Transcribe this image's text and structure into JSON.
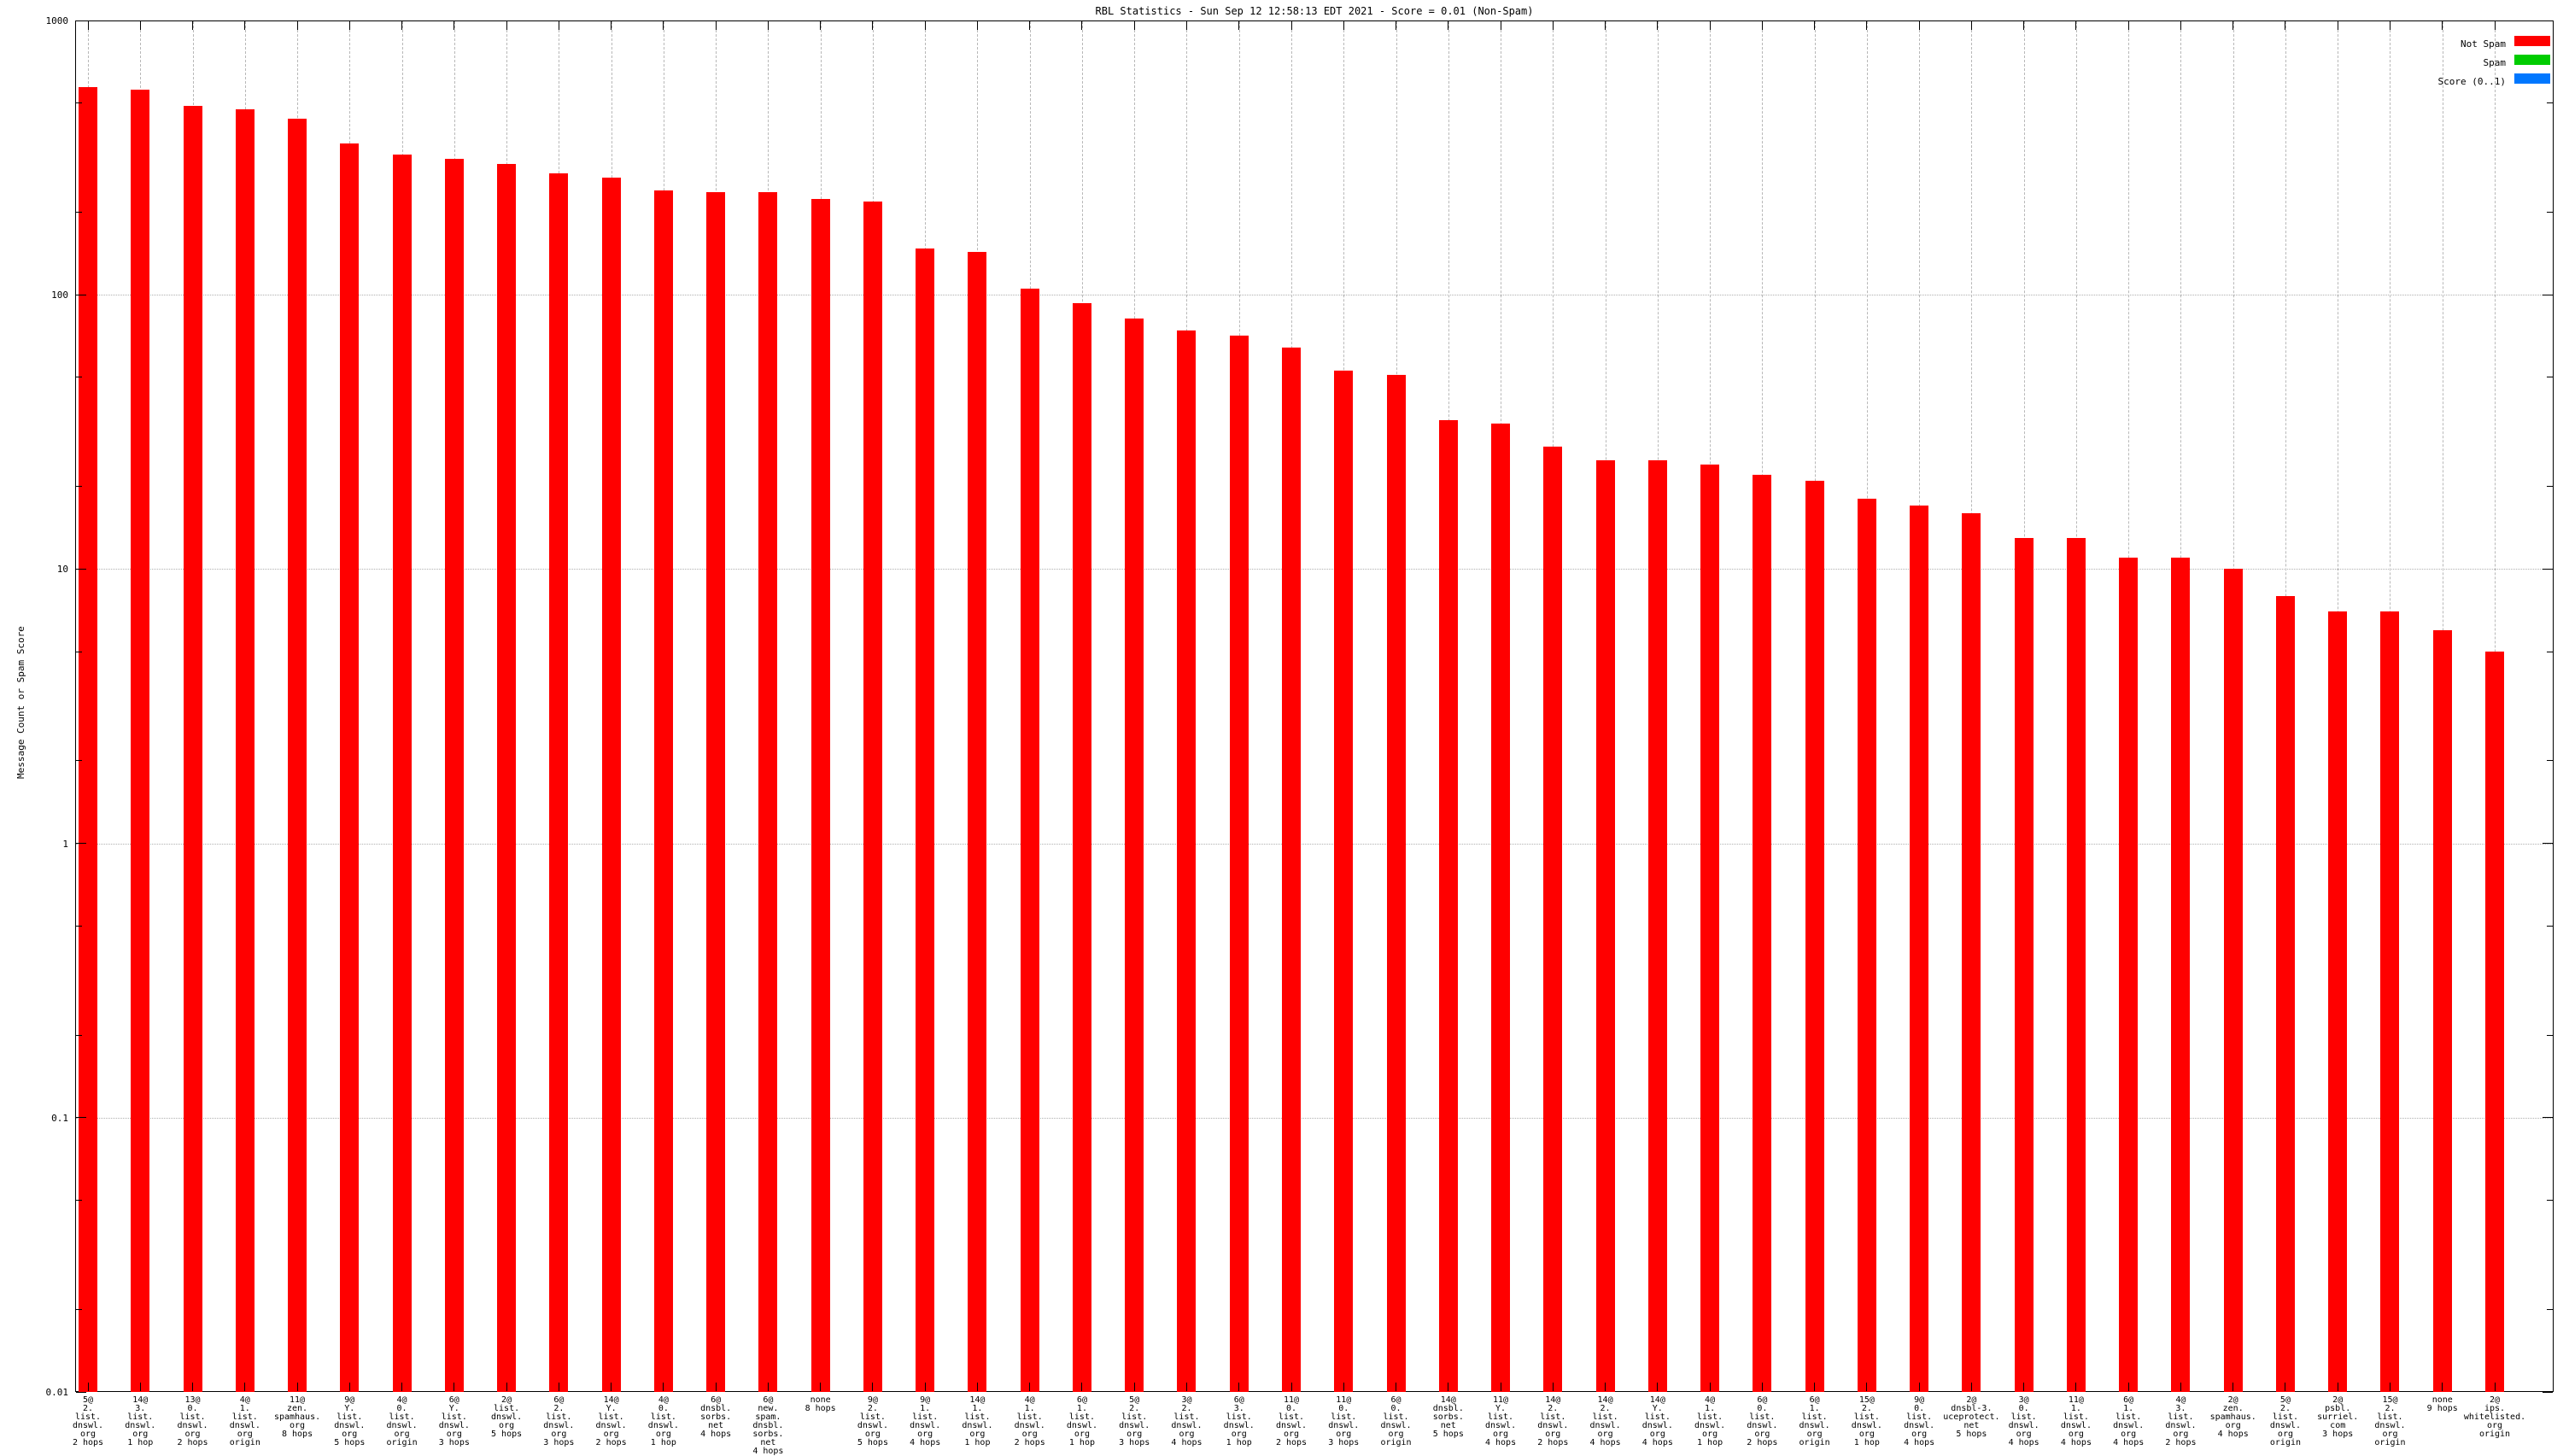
{
  "title": "RBL Statistics - Sun Sep 12 12:58:13 EDT 2021 - Score = 0.01 (Non-Spam)",
  "y_axis": {
    "label": "Message Count or Spam Score",
    "scale": "log",
    "tick_labels": [
      "1000",
      "100",
      "10",
      "1",
      "0.1",
      "0.01"
    ]
  },
  "legend": [
    {
      "label": "Not Spam",
      "color": "#ff0000"
    },
    {
      "label": "Spam",
      "color": "#00cc00"
    },
    {
      "label": "Score (0..1)",
      "color": "#0077ff"
    }
  ],
  "chart_data": {
    "type": "bar",
    "title": "RBL Statistics - Sun Sep 12 12:58:13 EDT 2021 - Score = 0.01 (Non-Spam)",
    "xlabel": "",
    "ylabel": "Message Count or Spam Score",
    "y_scale": "log",
    "ylim": [
      0.01,
      1000
    ],
    "grid": true,
    "legend_position": "top-right",
    "bar_color": "#ff0000",
    "series": [
      {
        "name": "Not Spam",
        "color": "#ff0000"
      },
      {
        "name": "Spam",
        "color": "#00cc00"
      },
      {
        "name": "Score (0..1)",
        "color": "#0077ff"
      }
    ],
    "categories": [
      [
        "5@",
        "2.",
        "list.",
        "dnswl.",
        "org",
        "2 hops"
      ],
      [
        "14@",
        "3.",
        "list.",
        "dnswl.",
        "org",
        "1 hop"
      ],
      [
        "13@",
        "0.",
        "list.",
        "dnswl.",
        "org",
        "2 hops"
      ],
      [
        "4@",
        "1.",
        "list.",
        "dnswl.",
        "org",
        "origin"
      ],
      [
        "11@",
        "zen.",
        "spamhaus.",
        "org",
        "8 hops"
      ],
      [
        "9@",
        "Y.",
        "list.",
        "dnswl.",
        "org",
        "5 hops"
      ],
      [
        "4@",
        "0.",
        "list.",
        "dnswl.",
        "org",
        "origin"
      ],
      [
        "6@",
        "Y.",
        "list.",
        "dnswl.",
        "org",
        "3 hops"
      ],
      [
        "2@",
        "list.",
        "dnswl.",
        "org",
        "5 hops"
      ],
      [
        "6@",
        "2.",
        "list.",
        "dnswl.",
        "org",
        "3 hops"
      ],
      [
        "14@",
        "Y.",
        "list.",
        "dnswl.",
        "org",
        "2 hops"
      ],
      [
        "4@",
        "0.",
        "list.",
        "dnswl.",
        "org",
        "1 hop"
      ],
      [
        "6@",
        "dnsbl.",
        "sorbs.",
        "net",
        "4 hops"
      ],
      [
        "6@",
        "new.",
        "spam.",
        "dnsbl.",
        "sorbs.",
        "net",
        "4 hops"
      ],
      [
        "none",
        "8 hops"
      ],
      [
        "9@",
        "2.",
        "list.",
        "dnswl.",
        "org",
        "5 hops"
      ],
      [
        "9@",
        "1.",
        "list.",
        "dnswl.",
        "org",
        "4 hops"
      ],
      [
        "14@",
        "1.",
        "list.",
        "dnswl.",
        "org",
        "1 hop"
      ],
      [
        "4@",
        "1.",
        "list.",
        "dnswl.",
        "org",
        "2 hops"
      ],
      [
        "6@",
        "1.",
        "list.",
        "dnswl.",
        "org",
        "1 hop"
      ],
      [
        "5@",
        "2.",
        "list.",
        "dnswl.",
        "org",
        "3 hops"
      ],
      [
        "3@",
        "2.",
        "list.",
        "dnswl.",
        "org",
        "4 hops"
      ],
      [
        "6@",
        "3.",
        "list.",
        "dnswl.",
        "org",
        "1 hop"
      ],
      [
        "11@",
        "0.",
        "list.",
        "dnswl.",
        "org",
        "2 hops"
      ],
      [
        "11@",
        "0.",
        "list.",
        "dnswl.",
        "org",
        "3 hops"
      ],
      [
        "6@",
        "0.",
        "list.",
        "dnswl.",
        "org",
        "origin"
      ],
      [
        "14@",
        "dnsbl.",
        "sorbs.",
        "net",
        "5 hops"
      ],
      [
        "11@",
        "Y.",
        "list.",
        "dnswl.",
        "org",
        "4 hops"
      ],
      [
        "14@",
        "2.",
        "list.",
        "dnswl.",
        "org",
        "2 hops"
      ],
      [
        "14@",
        "2.",
        "list.",
        "dnswl.",
        "org",
        "4 hops"
      ],
      [
        "14@",
        "Y.",
        "list.",
        "dnswl.",
        "org",
        "4 hops"
      ],
      [
        "4@",
        "1.",
        "list.",
        "dnswl.",
        "org",
        "1 hop"
      ],
      [
        "6@",
        "0.",
        "list.",
        "dnswl.",
        "org",
        "2 hops"
      ],
      [
        "6@",
        "1.",
        "list.",
        "dnswl.",
        "org",
        "origin"
      ],
      [
        "15@",
        "2.",
        "list.",
        "dnswl.",
        "org",
        "1 hop"
      ],
      [
        "9@",
        "0.",
        "list.",
        "dnswl.",
        "org",
        "4 hops"
      ],
      [
        "2@",
        "dnsbl-3.",
        "uceprotect.",
        "net",
        "5 hops"
      ],
      [
        "3@",
        "0.",
        "list.",
        "dnswl.",
        "org",
        "4 hops"
      ],
      [
        "11@",
        "1.",
        "list.",
        "dnswl.",
        "org",
        "4 hops"
      ],
      [
        "6@",
        "1.",
        "list.",
        "dnswl.",
        "org",
        "4 hops"
      ],
      [
        "4@",
        "3.",
        "list.",
        "dnswl.",
        "org",
        "2 hops"
      ],
      [
        "2@",
        "zen.",
        "spamhaus.",
        "org",
        "4 hops"
      ],
      [
        "5@",
        "2.",
        "list.",
        "dnswl.",
        "org",
        "origin"
      ],
      [
        "2@",
        "psbl.",
        "surriel.",
        "com",
        "3 hops"
      ],
      [
        "15@",
        "2.",
        "list.",
        "dnswl.",
        "org",
        "origin"
      ],
      [
        "none",
        "9 hops"
      ],
      [
        "2@",
        "ips.",
        "whitelisted.",
        "org",
        "origin"
      ]
    ],
    "values": [
      570,
      560,
      490,
      475,
      440,
      355,
      325,
      312,
      300,
      277,
      268,
      240,
      236,
      236,
      223,
      219,
      148,
      143,
      105,
      93,
      82,
      74,
      71,
      64,
      53,
      51,
      35,
      34,
      28,
      25,
      25,
      24,
      22,
      21,
      18,
      17,
      16,
      13,
      13,
      11,
      11,
      10,
      8,
      7,
      7,
      6,
      5
    ]
  }
}
